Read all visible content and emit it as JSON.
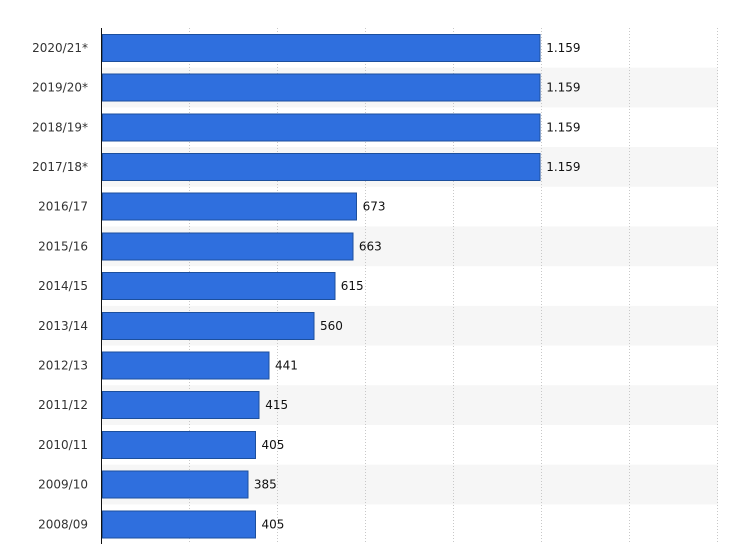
{
  "chart_data": {
    "type": "bar",
    "orientation": "horizontal",
    "categories": [
      "2020/21*",
      "2019/20*",
      "2018/19*",
      "2017/18*",
      "2016/17",
      "2015/16",
      "2014/15",
      "2013/14",
      "2012/13",
      "2011/12",
      "2010/11",
      "2009/10",
      "2008/09"
    ],
    "values": [
      1159,
      1159,
      1159,
      1159,
      673,
      663,
      615,
      560,
      441,
      415,
      405,
      385,
      405
    ],
    "value_labels": [
      "1.159",
      "1.159",
      "1.159",
      "1.159",
      "673",
      "663",
      "615",
      "560",
      "441",
      "415",
      "405",
      "385",
      "405"
    ],
    "title": "",
    "xlabel": "",
    "ylabel": "",
    "xlim": [
      0,
      1400
    ],
    "grid": true,
    "colors": {
      "bar": "#2f6fde",
      "bar_border": "#1c4f9d",
      "band": "#f6f6f6",
      "text": "#333333"
    }
  }
}
